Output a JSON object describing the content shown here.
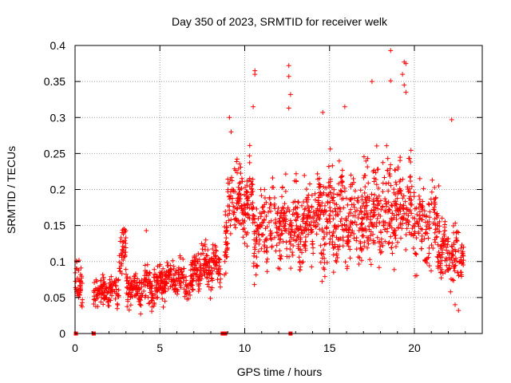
{
  "chart_data": {
    "type": "scatter",
    "title": "Day 350 of 2023, SRMTID for receiver welk",
    "xlabel": "GPS time / hours",
    "ylabel": "SRMTID / TECUs",
    "xlim": [
      0,
      24
    ],
    "ylim": [
      0,
      0.4
    ],
    "xticks": [
      0,
      5,
      10,
      15,
      20
    ],
    "xtick_labels": [
      "0",
      "5",
      "10",
      "15",
      "20"
    ],
    "yticks": [
      0,
      0.05,
      0.1,
      0.15,
      0.2,
      0.25,
      0.3,
      0.35,
      0.4
    ],
    "ytick_labels": [
      "0",
      "0.05",
      "0.1",
      "0.15",
      "0.2",
      "0.25",
      "0.3",
      "0.35",
      "0.4"
    ],
    "grid": true,
    "marker": "plus",
    "color": "#ff0000",
    "baseline_markers_x": [
      0.05,
      1.1,
      8.7,
      8.75,
      8.8,
      8.85,
      12.7
    ],
    "series": [
      {
        "name": "SRMTID",
        "segments": [
          {
            "x_start": 0.0,
            "x_end": 0.45,
            "mean": 0.065,
            "spread": 0.03,
            "count": 40
          },
          {
            "x_start": 1.1,
            "x_end": 2.6,
            "mean": 0.06,
            "spread": 0.02,
            "count": 120
          },
          {
            "x_start": 2.6,
            "x_end": 3.0,
            "mean": 0.11,
            "spread": 0.03,
            "count": 40
          },
          {
            "x_start": 3.0,
            "x_end": 5.0,
            "mean": 0.065,
            "spread": 0.025,
            "count": 180
          },
          {
            "x_start": 5.0,
            "x_end": 7.0,
            "mean": 0.075,
            "spread": 0.025,
            "count": 180
          },
          {
            "x_start": 7.0,
            "x_end": 8.6,
            "mean": 0.095,
            "spread": 0.025,
            "count": 150
          },
          {
            "x_start": 8.8,
            "x_end": 9.0,
            "mean": 0.12,
            "spread": 0.04,
            "count": 30
          },
          {
            "x_start": 9.0,
            "x_end": 10.5,
            "mean": 0.18,
            "spread": 0.05,
            "count": 150
          },
          {
            "x_start": 10.5,
            "x_end": 14.0,
            "mean": 0.15,
            "spread": 0.05,
            "count": 320
          },
          {
            "x_start": 14.0,
            "x_end": 17.0,
            "mean": 0.16,
            "spread": 0.06,
            "count": 300
          },
          {
            "x_start": 17.0,
            "x_end": 20.0,
            "mean": 0.17,
            "spread": 0.06,
            "count": 300
          },
          {
            "x_start": 20.0,
            "x_end": 21.5,
            "mean": 0.15,
            "spread": 0.05,
            "count": 130
          },
          {
            "x_start": 21.5,
            "x_end": 22.9,
            "mean": 0.11,
            "spread": 0.035,
            "count": 120
          }
        ],
        "outliers": [
          {
            "x": 4.2,
            "y": 0.143
          },
          {
            "x": 9.1,
            "y": 0.3
          },
          {
            "x": 9.2,
            "y": 0.28
          },
          {
            "x": 10.6,
            "y": 0.365
          },
          {
            "x": 10.6,
            "y": 0.36
          },
          {
            "x": 10.5,
            "y": 0.315
          },
          {
            "x": 12.6,
            "y": 0.372
          },
          {
            "x": 12.6,
            "y": 0.357
          },
          {
            "x": 12.7,
            "y": 0.332
          },
          {
            "x": 12.6,
            "y": 0.313
          },
          {
            "x": 14.6,
            "y": 0.307
          },
          {
            "x": 15.9,
            "y": 0.315
          },
          {
            "x": 17.5,
            "y": 0.35
          },
          {
            "x": 18.6,
            "y": 0.351
          },
          {
            "x": 18.6,
            "y": 0.393
          },
          {
            "x": 19.4,
            "y": 0.377
          },
          {
            "x": 19.5,
            "y": 0.375
          },
          {
            "x": 19.3,
            "y": 0.36
          },
          {
            "x": 19.4,
            "y": 0.345
          },
          {
            "x": 19.5,
            "y": 0.335
          },
          {
            "x": 22.2,
            "y": 0.297
          },
          {
            "x": 22.4,
            "y": 0.04
          },
          {
            "x": 22.6,
            "y": 0.032
          }
        ]
      }
    ]
  }
}
